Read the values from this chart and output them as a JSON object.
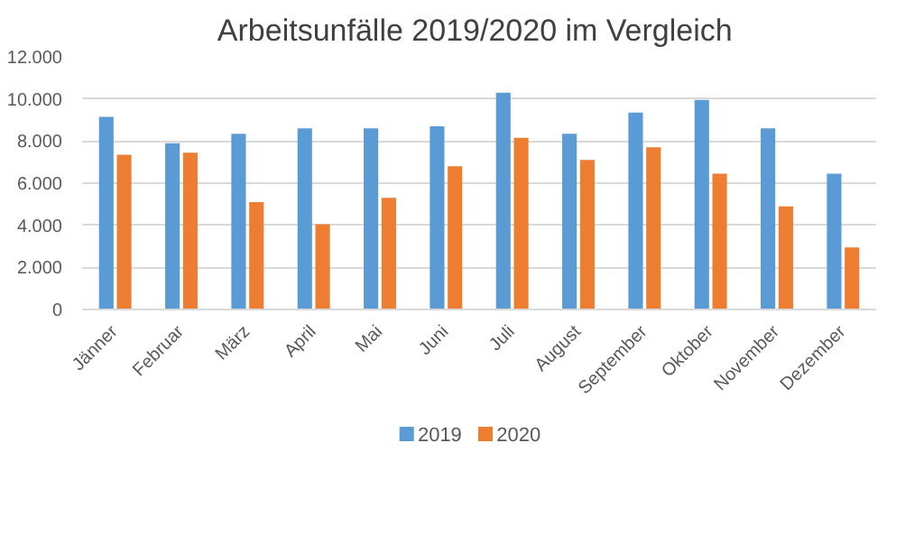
{
  "chart_data": {
    "type": "bar",
    "title": "Arbeitsunfälle  2019/2020 im Vergleich",
    "categories": [
      "Jänner",
      "Februar",
      "März",
      "April",
      "Mai",
      "Juni",
      "Juli",
      "August",
      "September",
      "Oktober",
      "November",
      "Dezember"
    ],
    "series": [
      {
        "name": "2019",
        "color": "#5b9bd5",
        "values": [
          9150,
          7900,
          8350,
          8600,
          8600,
          8700,
          10300,
          8350,
          9350,
          9950,
          8600,
          6450
        ]
      },
      {
        "name": "2020",
        "color": "#ed7d31",
        "values": [
          7350,
          7450,
          5100,
          4050,
          5300,
          6800,
          8150,
          7100,
          7700,
          6450,
          4900,
          2950
        ]
      }
    ],
    "ylim": [
      0,
      12000
    ],
    "yticks": [
      0,
      {
        "value": 2000,
        "label": "2.000"
      },
      {
        "value": 4000,
        "label": "4.000"
      },
      {
        "value": 6000,
        "label": "6.000"
      },
      {
        "value": 8000,
        "label": "8.000"
      },
      {
        "value": 10000,
        "label": "10.000"
      },
      {
        "value": 12000,
        "label": "12.000"
      }
    ],
    "grid": "y",
    "legend": "bottom"
  }
}
